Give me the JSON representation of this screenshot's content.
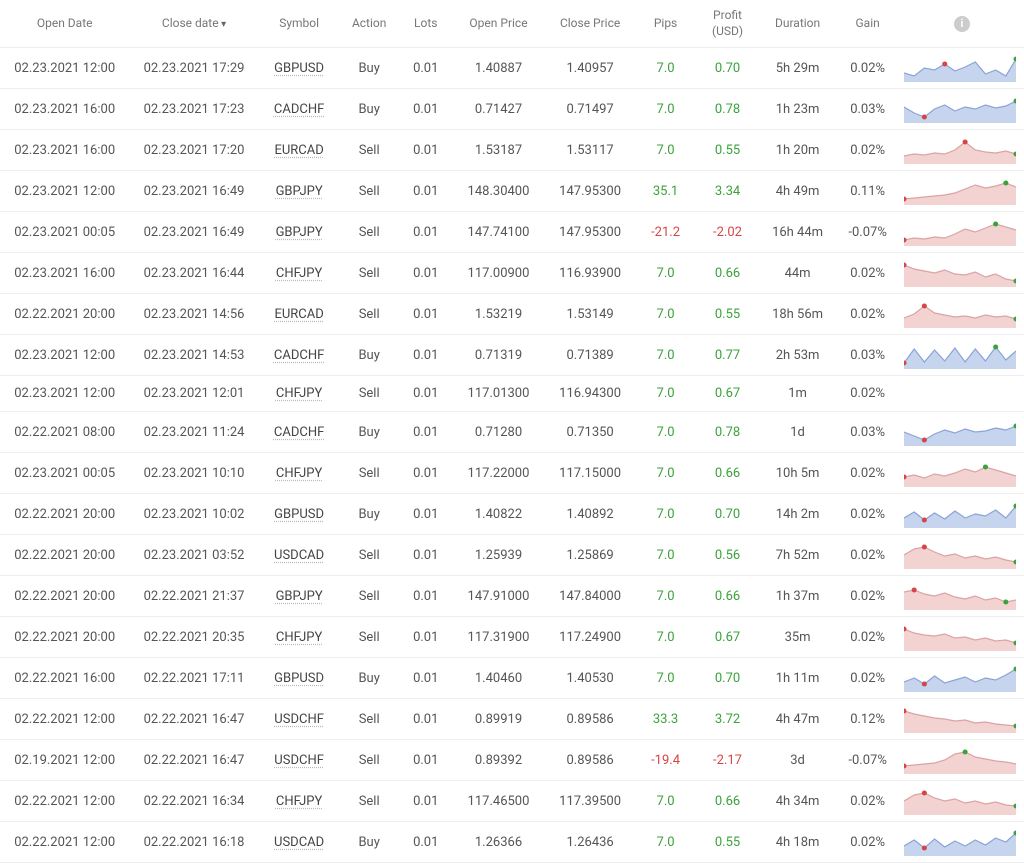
{
  "columns": {
    "open_date": "Open Date",
    "close_date": "Close date",
    "symbol": "Symbol",
    "action": "Action",
    "lots": "Lots",
    "open_price": "Open Price",
    "close_price": "Close Price",
    "pips": "Pips",
    "profit": "Profit (USD)",
    "duration": "Duration",
    "gain": "Gain"
  },
  "sort_column": "close_date",
  "colors": {
    "positive": "#3aa23a",
    "negative": "#d64545",
    "buy_fill": "#c6d4ee",
    "buy_stroke": "#8aa3d8",
    "sell_fill": "#f3d2d2",
    "sell_stroke": "#dca3a3",
    "marker_start": "#d64545",
    "marker_end": "#3aa23a",
    "row_border": "#eeeeee",
    "text": "#555555",
    "header_text": "#777777"
  },
  "spark": {
    "width": 110,
    "height": 28,
    "points_per_row": 12,
    "marker_radius": 2.5
  },
  "rows": [
    {
      "open_date": "02.23.2021 12:00",
      "close_date": "02.23.2021 17:29",
      "symbol": "GBPUSD",
      "action": "Buy",
      "lots": "0.01",
      "open_price": "1.40887",
      "close_price": "1.40957",
      "pips": "7.0",
      "pips_sign": "pos",
      "profit": "0.70",
      "profit_sign": "pos",
      "duration": "5h 29m",
      "gain": "0.02%",
      "spark": [
        9,
        6,
        14,
        12,
        18,
        11,
        15,
        20,
        8,
        12,
        6,
        23
      ],
      "start_idx": 4,
      "end_idx": 11
    },
    {
      "open_date": "02.23.2021 16:00",
      "close_date": "02.23.2021 17:23",
      "symbol": "CADCHF",
      "action": "Buy",
      "lots": "0.01",
      "open_price": "0.71427",
      "close_price": "0.71497",
      "pips": "7.0",
      "pips_sign": "pos",
      "profit": "0.78",
      "profit_sign": "pos",
      "duration": "1h 23m",
      "gain": "0.03%",
      "spark": [
        16,
        10,
        6,
        14,
        18,
        12,
        16,
        14,
        18,
        15,
        17,
        22
      ],
      "start_idx": 2,
      "end_idx": 11
    },
    {
      "open_date": "02.23.2021 16:00",
      "close_date": "02.23.2021 17:20",
      "symbol": "EURCAD",
      "action": "Sell",
      "lots": "0.01",
      "open_price": "1.53187",
      "close_price": "1.53117",
      "pips": "7.0",
      "pips_sign": "pos",
      "profit": "0.55",
      "profit_sign": "pos",
      "duration": "1h 20m",
      "gain": "0.02%",
      "spark": [
        8,
        10,
        9,
        11,
        10,
        14,
        22,
        14,
        12,
        11,
        13,
        10
      ],
      "start_idx": 6,
      "end_idx": 11
    },
    {
      "open_date": "02.23.2021 12:00",
      "close_date": "02.23.2021 16:49",
      "symbol": "GBPJPY",
      "action": "Sell",
      "lots": "0.01",
      "open_price": "148.30400",
      "close_price": "147.95300",
      "pips": "35.1",
      "pips_sign": "pos",
      "profit": "3.34",
      "profit_sign": "pos",
      "duration": "4h 49m",
      "gain": "0.11%",
      "spark": [
        6,
        7,
        8,
        9,
        10,
        12,
        16,
        20,
        17,
        19,
        22,
        18
      ],
      "start_idx": 0,
      "end_idx": 10
    },
    {
      "open_date": "02.23.2021 00:05",
      "close_date": "02.23.2021 16:49",
      "symbol": "GBPJPY",
      "action": "Sell",
      "lots": "0.01",
      "open_price": "147.74100",
      "close_price": "147.95300",
      "pips": "-21.2",
      "pips_sign": "neg",
      "profit": "-2.02",
      "profit_sign": "neg",
      "duration": "16h 44m",
      "gain": "-0.07%",
      "spark": [
        6,
        8,
        7,
        9,
        8,
        12,
        17,
        14,
        18,
        22,
        19,
        16
      ],
      "start_idx": 0,
      "end_idx": 9
    },
    {
      "open_date": "02.23.2021 16:00",
      "close_date": "02.23.2021 16:44",
      "symbol": "CHFJPY",
      "action": "Sell",
      "lots": "0.01",
      "open_price": "117.00900",
      "close_price": "116.93900",
      "pips": "7.0",
      "pips_sign": "pos",
      "profit": "0.66",
      "profit_sign": "pos",
      "duration": "44m",
      "gain": "0.02%",
      "spark": [
        22,
        18,
        16,
        14,
        17,
        13,
        12,
        15,
        10,
        13,
        8,
        6
      ],
      "start_idx": 0,
      "end_idx": 11
    },
    {
      "open_date": "02.22.2021 20:00",
      "close_date": "02.23.2021 14:56",
      "symbol": "EURCAD",
      "action": "Sell",
      "lots": "0.01",
      "open_price": "1.53219",
      "close_price": "1.53149",
      "pips": "7.0",
      "pips_sign": "pos",
      "profit": "0.55",
      "profit_sign": "pos",
      "duration": "18h 56m",
      "gain": "0.02%",
      "spark": [
        10,
        14,
        22,
        15,
        13,
        11,
        12,
        10,
        13,
        11,
        12,
        9
      ],
      "start_idx": 2,
      "end_idx": 11
    },
    {
      "open_date": "02.23.2021 12:00",
      "close_date": "02.23.2021 14:53",
      "symbol": "CADCHF",
      "action": "Buy",
      "lots": "0.01",
      "open_price": "0.71319",
      "close_price": "0.71389",
      "pips": "7.0",
      "pips_sign": "pos",
      "profit": "0.77",
      "profit_sign": "pos",
      "duration": "2h 53m",
      "gain": "0.03%",
      "spark": [
        6,
        20,
        7,
        19,
        8,
        21,
        7,
        20,
        8,
        22,
        9,
        18
      ],
      "start_idx": 0,
      "end_idx": 9
    },
    {
      "open_date": "02.23.2021 12:00",
      "close_date": "02.23.2021 12:01",
      "symbol": "CHFJPY",
      "action": "Sell",
      "lots": "0.01",
      "open_price": "117.01300",
      "close_price": "116.94300",
      "pips": "7.0",
      "pips_sign": "pos",
      "profit": "0.67",
      "profit_sign": "pos",
      "duration": "1m",
      "gain": "0.02%",
      "spark": null
    },
    {
      "open_date": "02.22.2021 08:00",
      "close_date": "02.23.2021 11:24",
      "symbol": "CADCHF",
      "action": "Buy",
      "lots": "0.01",
      "open_price": "0.71280",
      "close_price": "0.71350",
      "pips": "7.0",
      "pips_sign": "pos",
      "profit": "0.78",
      "profit_sign": "pos",
      "duration": "1d",
      "gain": "0.03%",
      "spark": [
        14,
        10,
        6,
        12,
        16,
        13,
        17,
        14,
        15,
        18,
        16,
        20
      ],
      "start_idx": 2,
      "end_idx": 11
    },
    {
      "open_date": "02.23.2021 00:05",
      "close_date": "02.23.2021 10:10",
      "symbol": "CHFJPY",
      "action": "Sell",
      "lots": "0.01",
      "open_price": "117.22000",
      "close_price": "117.15000",
      "pips": "7.0",
      "pips_sign": "pos",
      "profit": "0.66",
      "profit_sign": "pos",
      "duration": "10h 5m",
      "gain": "0.02%",
      "spark": [
        10,
        12,
        9,
        13,
        11,
        14,
        18,
        15,
        20,
        17,
        14,
        11
      ],
      "start_idx": 0,
      "end_idx": 8
    },
    {
      "open_date": "02.22.2021 20:00",
      "close_date": "02.23.2021 10:02",
      "symbol": "GBPUSD",
      "action": "Buy",
      "lots": "0.01",
      "open_price": "1.40822",
      "close_price": "1.40892",
      "pips": "7.0",
      "pips_sign": "pos",
      "profit": "0.70",
      "profit_sign": "pos",
      "duration": "14h 2m",
      "gain": "0.02%",
      "spark": [
        10,
        16,
        8,
        15,
        9,
        17,
        10,
        14,
        12,
        18,
        10,
        22
      ],
      "start_idx": 2,
      "end_idx": 11
    },
    {
      "open_date": "02.22.2021 20:00",
      "close_date": "02.23.2021 03:52",
      "symbol": "USDCAD",
      "action": "Sell",
      "lots": "0.01",
      "open_price": "1.25939",
      "close_price": "1.25869",
      "pips": "7.0",
      "pips_sign": "pos",
      "profit": "0.56",
      "profit_sign": "pos",
      "duration": "7h 52m",
      "gain": "0.02%",
      "spark": [
        14,
        20,
        22,
        17,
        13,
        15,
        11,
        13,
        10,
        12,
        9,
        7
      ],
      "start_idx": 2,
      "end_idx": 11
    },
    {
      "open_date": "02.22.2021 20:00",
      "close_date": "02.22.2021 21:37",
      "symbol": "GBPJPY",
      "action": "Sell",
      "lots": "0.01",
      "open_price": "147.91000",
      "close_price": "147.84000",
      "pips": "7.0",
      "pips_sign": "pos",
      "profit": "0.66",
      "profit_sign": "pos",
      "duration": "1h 37m",
      "gain": "0.02%",
      "spark": [
        18,
        20,
        16,
        14,
        17,
        13,
        11,
        14,
        10,
        12,
        8,
        10
      ],
      "start_idx": 1,
      "end_idx": 10
    },
    {
      "open_date": "02.22.2021 20:00",
      "close_date": "02.22.2021 20:35",
      "symbol": "CHFJPY",
      "action": "Sell",
      "lots": "0.01",
      "open_price": "117.31900",
      "close_price": "117.24900",
      "pips": "7.0",
      "pips_sign": "pos",
      "profit": "0.67",
      "profit_sign": "pos",
      "duration": "35m",
      "gain": "0.02%",
      "spark": [
        22,
        18,
        16,
        15,
        17,
        13,
        14,
        11,
        13,
        10,
        11,
        8
      ],
      "start_idx": 0,
      "end_idx": 11
    },
    {
      "open_date": "02.22.2021 16:00",
      "close_date": "02.22.2021 17:11",
      "symbol": "GBPUSD",
      "action": "Buy",
      "lots": "0.01",
      "open_price": "1.40460",
      "close_price": "1.40530",
      "pips": "7.0",
      "pips_sign": "pos",
      "profit": "0.70",
      "profit_sign": "pos",
      "duration": "1h 11m",
      "gain": "0.02%",
      "spark": [
        10,
        14,
        8,
        16,
        9,
        12,
        15,
        10,
        14,
        12,
        17,
        23
      ],
      "start_idx": 2,
      "end_idx": 11
    },
    {
      "open_date": "02.22.2021 12:00",
      "close_date": "02.22.2021 16:47",
      "symbol": "USDCHF",
      "action": "Sell",
      "lots": "0.01",
      "open_price": "0.89919",
      "close_price": "0.89586",
      "pips": "33.3",
      "pips_sign": "pos",
      "profit": "3.72",
      "profit_sign": "pos",
      "duration": "4h 47m",
      "gain": "0.12%",
      "spark": [
        22,
        19,
        17,
        15,
        14,
        12,
        13,
        10,
        11,
        9,
        8,
        7
      ],
      "start_idx": 0,
      "end_idx": 11
    },
    {
      "open_date": "02.19.2021 12:00",
      "close_date": "02.22.2021 16:47",
      "symbol": "USDCHF",
      "action": "Sell",
      "lots": "0.01",
      "open_price": "0.89392",
      "close_price": "0.89586",
      "pips": "-19.4",
      "pips_sign": "neg",
      "profit": "-2.17",
      "profit_sign": "neg",
      "duration": "3d",
      "gain": "-0.07%",
      "spark": [
        8,
        9,
        10,
        11,
        14,
        20,
        22,
        17,
        15,
        13,
        12,
        10
      ],
      "start_idx": 0,
      "end_idx": 6
    },
    {
      "open_date": "02.22.2021 12:00",
      "close_date": "02.22.2021 16:34",
      "symbol": "CHFJPY",
      "action": "Sell",
      "lots": "0.01",
      "open_price": "117.46500",
      "close_price": "117.39500",
      "pips": "7.0",
      "pips_sign": "pos",
      "profit": "0.66",
      "profit_sign": "pos",
      "duration": "4h 34m",
      "gain": "0.02%",
      "spark": [
        14,
        20,
        22,
        17,
        14,
        16,
        12,
        14,
        11,
        13,
        10,
        9
      ],
      "start_idx": 2,
      "end_idx": 11
    },
    {
      "open_date": "02.22.2021 12:00",
      "close_date": "02.22.2021 16:18",
      "symbol": "USDCAD",
      "action": "Buy",
      "lots": "0.01",
      "open_price": "1.26366",
      "close_price": "1.26436",
      "pips": "7.0",
      "pips_sign": "pos",
      "profit": "0.55",
      "profit_sign": "pos",
      "duration": "4h 18m",
      "gain": "0.02%",
      "spark": [
        10,
        16,
        8,
        17,
        9,
        15,
        10,
        16,
        11,
        18,
        14,
        23
      ],
      "start_idx": 2,
      "end_idx": 11
    }
  ]
}
